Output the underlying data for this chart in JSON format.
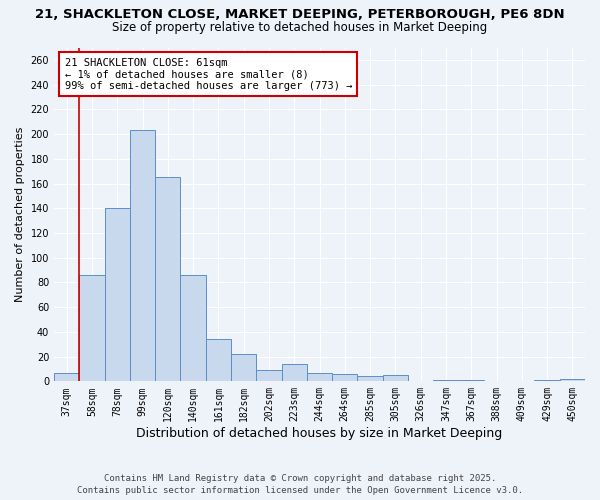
{
  "title1": "21, SHACKLETON CLOSE, MARKET DEEPING, PETERBOROUGH, PE6 8DN",
  "title2": "Size of property relative to detached houses in Market Deeping",
  "xlabel": "Distribution of detached houses by size in Market Deeping",
  "ylabel": "Number of detached properties",
  "categories": [
    "37sqm",
    "58sqm",
    "78sqm",
    "99sqm",
    "120sqm",
    "140sqm",
    "161sqm",
    "182sqm",
    "202sqm",
    "223sqm",
    "244sqm",
    "264sqm",
    "285sqm",
    "305sqm",
    "326sqm",
    "347sqm",
    "367sqm",
    "388sqm",
    "409sqm",
    "429sqm",
    "450sqm"
  ],
  "values": [
    7,
    86,
    140,
    203,
    165,
    86,
    34,
    22,
    9,
    14,
    7,
    6,
    4,
    5,
    0,
    1,
    1,
    0,
    0,
    1,
    2
  ],
  "bar_color": "#c9d9ed",
  "bar_edge_color": "#5b8ec8",
  "red_line_index": 1,
  "annotation_title": "21 SHACKLETON CLOSE: 61sqm",
  "annotation_line1": "← 1% of detached houses are smaller (8)",
  "annotation_line2": "99% of semi-detached houses are larger (773) →",
  "annotation_box_color": "#ffffff",
  "annotation_box_edge_color": "#cc0000",
  "red_line_color": "#cc0000",
  "ylim": [
    0,
    270
  ],
  "yticks": [
    0,
    20,
    40,
    60,
    80,
    100,
    120,
    140,
    160,
    180,
    200,
    220,
    240,
    260
  ],
  "footnote1": "Contains HM Land Registry data © Crown copyright and database right 2025.",
  "footnote2": "Contains public sector information licensed under the Open Government Licence v3.0.",
  "bg_color": "#eef2f9",
  "title1_fontsize": 9.5,
  "title2_fontsize": 8.5,
  "xlabel_fontsize": 9,
  "ylabel_fontsize": 8,
  "tick_fontsize": 7,
  "annotation_fontsize": 7.5,
  "footnote_fontsize": 6.5
}
